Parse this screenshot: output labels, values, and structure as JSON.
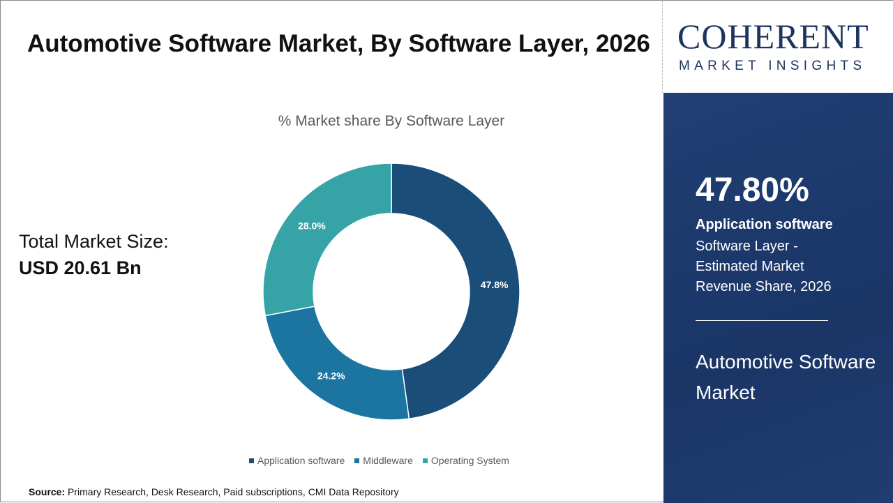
{
  "title": "Automotive Software Market, By Software Layer, 2026",
  "logo": {
    "big": "COHERENT",
    "small": "MARKET INSIGHTS"
  },
  "total": {
    "label": "Total Market Size:",
    "value": "USD 20.61 Bn"
  },
  "panel": {
    "percent": "47.80%",
    "segment": "Application software",
    "description": "Software Layer - Estimated Market Revenue Share, 2026",
    "market": "Automotive Software Market"
  },
  "source": {
    "label": "Source:",
    "text": " Primary Research, Desk Research, Paid subscriptions, CMI Data Repository"
  },
  "chart_data": {
    "type": "pie",
    "donut": true,
    "title": "% Market share By Software Layer",
    "categories": [
      "Application software",
      "Middleware",
      "Operating System"
    ],
    "values": [
      47.8,
      24.2,
      28.0
    ],
    "labels": [
      "47.8%",
      "24.2%",
      "28.0%"
    ],
    "colors": [
      "#1a4e79",
      "#1b75a0",
      "#36a3a6"
    ],
    "legend": "bottom"
  }
}
